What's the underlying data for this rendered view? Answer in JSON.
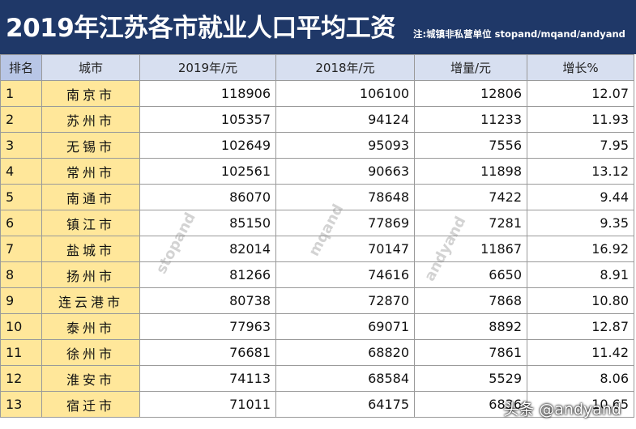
{
  "header": {
    "title": "2019年江苏各市就业人口平均工资",
    "note": "注:城镇非私营单位  stopand/mqand/andyand"
  },
  "columns": [
    "排名",
    "城市",
    "2019年/元",
    "2018年/元",
    "增量/元",
    "增长%"
  ],
  "rows": [
    {
      "rank": "1",
      "city": "南京市",
      "y2019": "118906",
      "y2018": "106100",
      "inc": "12806",
      "pct": "12.07"
    },
    {
      "rank": "2",
      "city": "苏州市",
      "y2019": "105357",
      "y2018": "94124",
      "inc": "11233",
      "pct": "11.93"
    },
    {
      "rank": "3",
      "city": "无锡市",
      "y2019": "102649",
      "y2018": "95093",
      "inc": "7556",
      "pct": "7.95"
    },
    {
      "rank": "4",
      "city": "常州市",
      "y2019": "102561",
      "y2018": "90663",
      "inc": "11898",
      "pct": "13.12"
    },
    {
      "rank": "5",
      "city": "南通市",
      "y2019": "86070",
      "y2018": "78648",
      "inc": "7422",
      "pct": "9.44"
    },
    {
      "rank": "6",
      "city": "镇江市",
      "y2019": "85150",
      "y2018": "77869",
      "inc": "7281",
      "pct": "9.35"
    },
    {
      "rank": "7",
      "city": "盐城市",
      "y2019": "82014",
      "y2018": "70147",
      "inc": "11867",
      "pct": "16.92"
    },
    {
      "rank": "8",
      "city": "扬州市",
      "y2019": "81266",
      "y2018": "74616",
      "inc": "6650",
      "pct": "8.91"
    },
    {
      "rank": "9",
      "city": "连云港市",
      "y2019": "80738",
      "y2018": "72870",
      "inc": "7868",
      "pct": "10.80"
    },
    {
      "rank": "10",
      "city": "泰州市",
      "y2019": "77963",
      "y2018": "69071",
      "inc": "8892",
      "pct": "12.87"
    },
    {
      "rank": "11",
      "city": "徐州市",
      "y2019": "76681",
      "y2018": "68820",
      "inc": "7861",
      "pct": "11.42"
    },
    {
      "rank": "12",
      "city": "淮安市",
      "y2019": "74113",
      "y2018": "68584",
      "inc": "5529",
      "pct": "8.06"
    },
    {
      "rank": "13",
      "city": "宿迁市",
      "y2019": "71011",
      "y2018": "64175",
      "inc": "6836",
      "pct": "10.65"
    }
  ],
  "watermarks": [
    "stopand",
    "mqand",
    "andyand"
  ],
  "corner_mark": "头条 @andyand",
  "colors": {
    "header_bg": "#1f3868",
    "highlight": "#ffe79a",
    "header_row": "#d7dff0"
  }
}
